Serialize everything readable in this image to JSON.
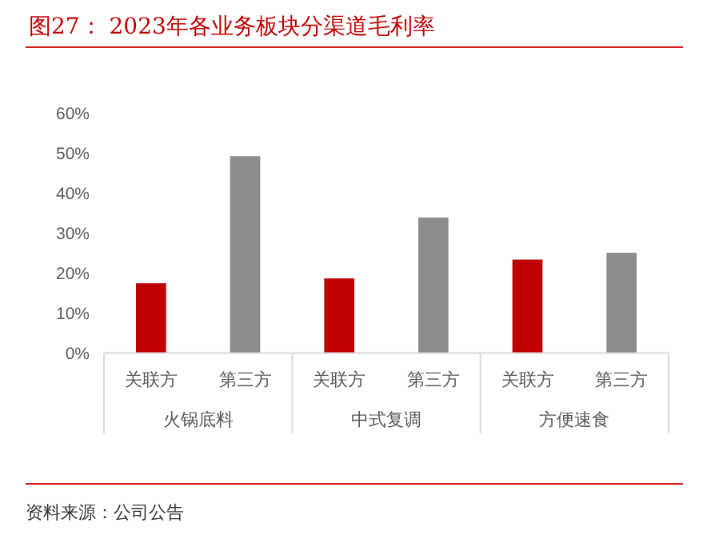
{
  "chart_data": {
    "type": "bar",
    "title": "图27：  2023年各业务板块分渠道毛利率",
    "categories": [
      "关联方",
      "第三方",
      "关联方",
      "第三方",
      "关联方",
      "第三方"
    ],
    "values": [
      17.4,
      49.1,
      18.6,
      33.8,
      23.3,
      25.0
    ],
    "colors": [
      "#c00000",
      "#8c8c8c",
      "#c00000",
      "#8c8c8c",
      "#c00000",
      "#8c8c8c"
    ],
    "ylim": [
      0,
      60
    ],
    "yticks": [
      {
        "value": 0,
        "label": "0%"
      },
      {
        "value": 10,
        "label": "10%"
      },
      {
        "value": 20,
        "label": "20%"
      },
      {
        "value": 30,
        "label": "30%"
      },
      {
        "value": 40,
        "label": "40%"
      },
      {
        "value": 50,
        "label": "50%"
      },
      {
        "value": 60,
        "label": "60%"
      }
    ],
    "annotations": [
      "火锅底料",
      "中式复调",
      "方便速食",
      "资料来源：公司公告"
    ],
    "grid": false
  }
}
